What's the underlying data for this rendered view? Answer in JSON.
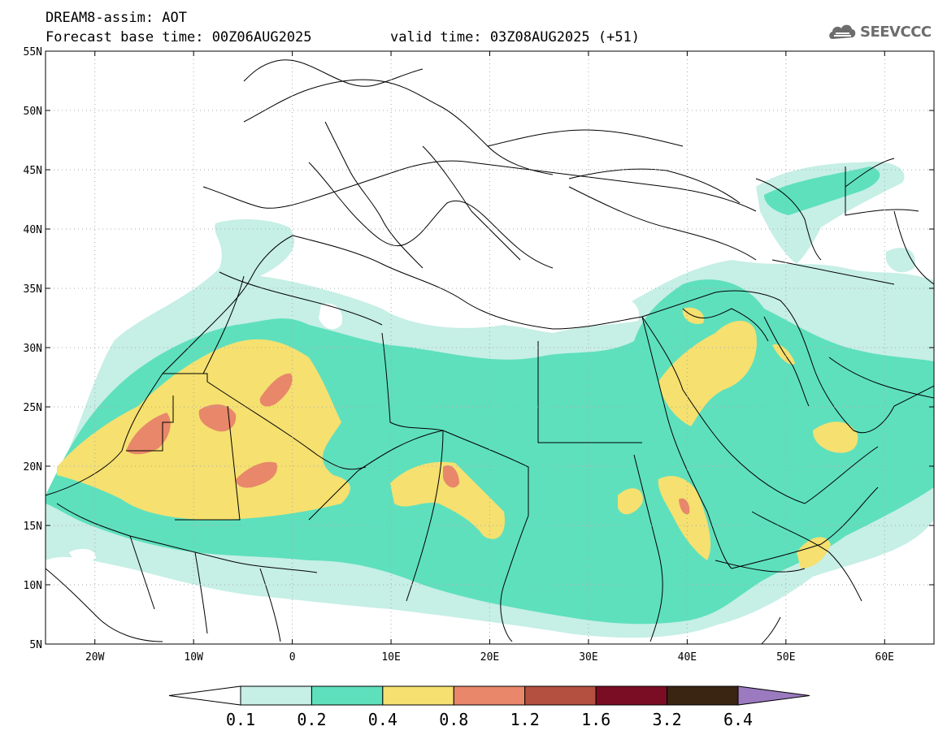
{
  "title": {
    "line1": "DREAM8-assim: AOT",
    "base_time": "Forecast base time: 00Z06AUG2025",
    "valid_time": "valid time: 03Z08AUG2025 (+51)"
  },
  "logo": {
    "text": "SEEVCCC",
    "icon": "cloud-logo-icon",
    "color": "#6d6d6d"
  },
  "map": {
    "lon_range": [
      -25,
      65
    ],
    "lat_range": [
      5,
      55
    ],
    "lat_ticks": [
      {
        "value": 55,
        "label": "55N"
      },
      {
        "value": 50,
        "label": "50N"
      },
      {
        "value": 45,
        "label": "45N"
      },
      {
        "value": 40,
        "label": "40N"
      },
      {
        "value": 35,
        "label": "35N"
      },
      {
        "value": 30,
        "label": "30N"
      },
      {
        "value": 25,
        "label": "25N"
      },
      {
        "value": 20,
        "label": "20N"
      },
      {
        "value": 15,
        "label": "15N"
      },
      {
        "value": 10,
        "label": "10N"
      },
      {
        "value": 5,
        "label": "5N"
      }
    ],
    "lon_ticks": [
      {
        "value": -20,
        "label": "20W"
      },
      {
        "value": -10,
        "label": "10W"
      },
      {
        "value": 0,
        "label": "0"
      },
      {
        "value": 10,
        "label": "10E"
      },
      {
        "value": 20,
        "label": "20E"
      },
      {
        "value": 30,
        "label": "30E"
      },
      {
        "value": 40,
        "label": "40E"
      },
      {
        "value": 50,
        "label": "50E"
      },
      {
        "value": 60,
        "label": "60E"
      }
    ],
    "grid": "dotted"
  },
  "colorbar": {
    "boundaries": [
      "0.1",
      "0.2",
      "0.4",
      "0.8",
      "1.2",
      "1.6",
      "3.2",
      "6.4"
    ],
    "colors": [
      "#c6efe6",
      "#5ee0bd",
      "#f5e070",
      "#e8876a",
      "#b4503f",
      "#7a0c24",
      "#3a2412",
      "#9b7ac0"
    ],
    "below_color": "#ffffff",
    "above_color": "#9b7ac0"
  }
}
